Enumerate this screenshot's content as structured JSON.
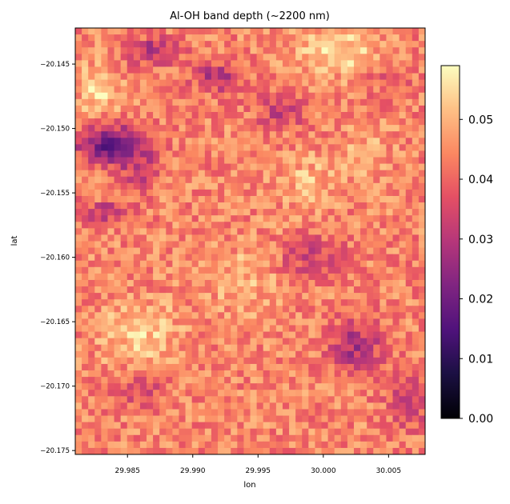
{
  "chart_data": {
    "type": "heatmap",
    "title": "Al-OH band depth (~2200 nm)",
    "xlabel": "lon",
    "ylabel": "lat",
    "xlim": [
      29.981,
      30.0078
    ],
    "ylim": [
      -20.1753,
      -20.1422
    ],
    "x_ticks": [
      29.985,
      29.99,
      29.995,
      30.0,
      30.005
    ],
    "x_tick_labels": [
      "29.985",
      "29.990",
      "29.995",
      "30.000",
      "30.005"
    ],
    "y_ticks": [
      -20.145,
      -20.15,
      -20.155,
      -20.16,
      -20.165,
      -20.17,
      -20.175
    ],
    "y_tick_labels": [
      "−20.145",
      "−20.150",
      "−20.155",
      "−20.160",
      "−20.165",
      "−20.170",
      "−20.175"
    ],
    "colormap": "magma",
    "colorbar": {
      "range": [
        0.0,
        0.059
      ],
      "ticks": [
        0.0,
        0.01,
        0.02,
        0.03,
        0.04,
        0.05
      ],
      "tick_labels": [
        "0.00",
        "0.01",
        "0.02",
        "0.03",
        "0.04",
        "0.05"
      ]
    },
    "grid": {
      "cols": 54,
      "rows": 66
    },
    "base_value": 0.044,
    "low_value_zones": [
      {
        "lon": 29.9838,
        "lat": -20.1513,
        "radius_lon": 0.0025,
        "radius_lat": 0.0015,
        "value": 0.016
      },
      {
        "lon": 29.987,
        "lat": -20.144,
        "radius_lon": 0.002,
        "radius_lat": 0.001,
        "value": 0.028
      },
      {
        "lon": 29.992,
        "lat": -20.146,
        "radius_lon": 0.002,
        "radius_lat": 0.0012,
        "value": 0.03
      },
      {
        "lon": 29.986,
        "lat": -20.153,
        "radius_lon": 0.0015,
        "radius_lat": 0.0015,
        "value": 0.03
      },
      {
        "lon": 29.9835,
        "lat": -20.1565,
        "radius_lon": 0.002,
        "radius_lat": 0.0008,
        "value": 0.03
      },
      {
        "lon": 29.9968,
        "lat": -20.1487,
        "radius_lon": 0.002,
        "radius_lat": 0.0012,
        "value": 0.032
      },
      {
        "lon": 29.999,
        "lat": -20.16,
        "radius_lon": 0.0025,
        "radius_lat": 0.0015,
        "value": 0.033
      },
      {
        "lon": 30.0025,
        "lat": -20.167,
        "radius_lon": 0.002,
        "radius_lat": 0.002,
        "value": 0.028
      },
      {
        "lon": 30.0065,
        "lat": -20.171,
        "radius_lon": 0.0015,
        "radius_lat": 0.002,
        "value": 0.03
      },
      {
        "lon": 29.986,
        "lat": -20.17,
        "radius_lon": 0.002,
        "radius_lat": 0.0015,
        "value": 0.034
      },
      {
        "lon": 30.005,
        "lat": -20.146,
        "radius_lon": 0.0015,
        "radius_lat": 0.0015,
        "value": 0.036
      }
    ],
    "high_value_zones": [
      {
        "lon": 29.9828,
        "lat": -20.147,
        "radius_lon": 0.0015,
        "radius_lat": 0.002,
        "value": 0.055
      },
      {
        "lon": 30.001,
        "lat": -20.144,
        "radius_lon": 0.003,
        "radius_lat": 0.0018,
        "value": 0.055
      },
      {
        "lon": 29.986,
        "lat": -20.166,
        "radius_lon": 0.003,
        "radius_lat": 0.0025,
        "value": 0.053
      },
      {
        "lon": 29.994,
        "lat": -20.162,
        "radius_lon": 0.0025,
        "radius_lat": 0.003,
        "value": 0.05
      },
      {
        "lon": 29.999,
        "lat": -20.154,
        "radius_lon": 0.0025,
        "radius_lat": 0.002,
        "value": 0.05
      },
      {
        "lon": 30.003,
        "lat": -20.152,
        "radius_lon": 0.002,
        "radius_lat": 0.002,
        "value": 0.05
      }
    ]
  }
}
